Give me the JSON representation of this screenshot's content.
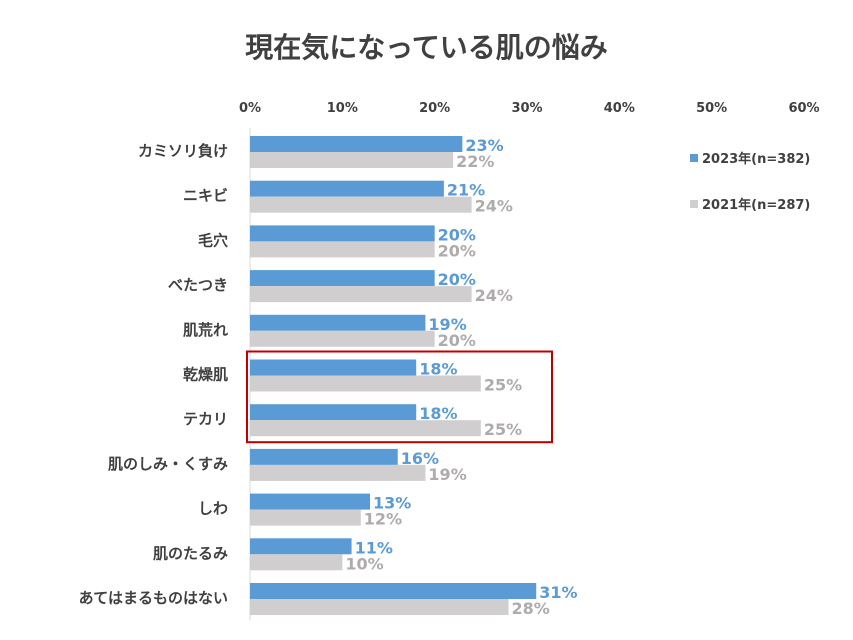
{
  "chart_data": {
    "type": "bar",
    "orientation": "horizontal",
    "title": "現在気になっている肌の悩み",
    "categories": [
      "カミソリ負け",
      "ニキビ",
      "毛穴",
      "べたつき",
      "肌荒れ",
      "乾燥肌",
      "テカリ",
      "肌のしみ・くすみ",
      "しわ",
      "肌のたるみ",
      "あてはまるものはない"
    ],
    "series": [
      {
        "name": "2023年(n=382)",
        "color": "#5B9BD5",
        "values": [
          23,
          21,
          20,
          20,
          19,
          18,
          18,
          16,
          13,
          11,
          31
        ],
        "labels": [
          "23%",
          "21%",
          "20%",
          "20%",
          "19%",
          "18%",
          "18%",
          "16%",
          "13%",
          "11%",
          "31%"
        ]
      },
      {
        "name": "2021年(n=287)",
        "color": "#D0CECE",
        "values": [
          22,
          24,
          20,
          24,
          20,
          25,
          25,
          19,
          12,
          10,
          28
        ],
        "labels": [
          "22%",
          "24%",
          "20%",
          "24%",
          "20%",
          "25%",
          "25%",
          "19%",
          "12%",
          "10%",
          "28%"
        ]
      }
    ],
    "xlim": [
      0,
      60
    ],
    "xticks": [
      "0%",
      "10%",
      "20%",
      "30%",
      "40%",
      "50%",
      "60%"
    ],
    "xaxis_position": "top",
    "legend_position": "right",
    "grid": false,
    "label_colors": [
      "#5B9BD5",
      "#AFABAB"
    ],
    "highlight": {
      "categories": [
        "乾燥肌",
        "テカリ"
      ],
      "color": "#C00000"
    }
  }
}
